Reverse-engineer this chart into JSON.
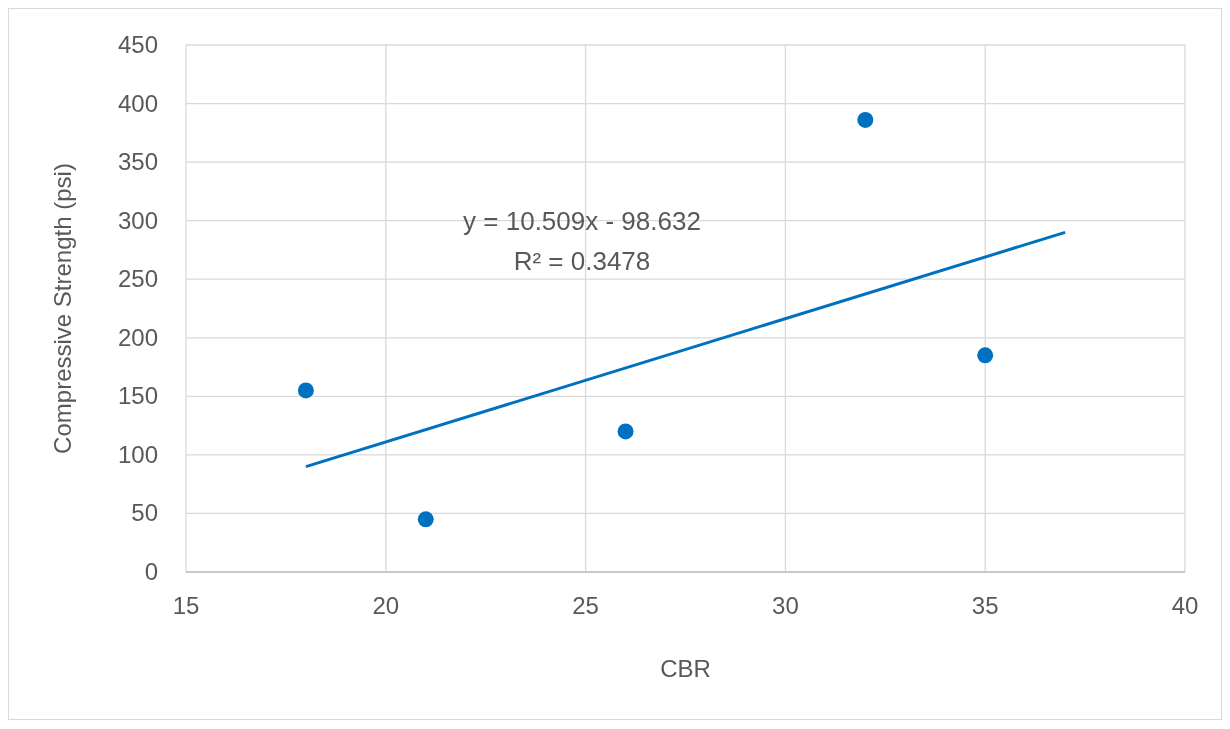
{
  "chart_data": {
    "type": "scatter",
    "xlabel": "CBR",
    "ylabel": "Compressive Strength (psi)",
    "xlim": [
      15,
      40
    ],
    "xticks": [
      15,
      20,
      25,
      30,
      35,
      40
    ],
    "ylim": [
      0,
      450
    ],
    "yticks": [
      0,
      50,
      100,
      150,
      200,
      250,
      300,
      350,
      400,
      450
    ],
    "grid": true,
    "series": [
      {
        "color": "#0070c0",
        "marker": "circle",
        "x": [
          18,
          21,
          26,
          32,
          35
        ],
        "values": [
          155,
          45,
          120,
          386,
          185
        ]
      },
      {
        "type": "line",
        "color": "#0070c0",
        "x": [
          18,
          37
        ],
        "values": [
          90,
          290
        ]
      }
    ],
    "annotations": [
      "y = 10.509x - 98.632",
      "R² = 0.3478"
    ]
  }
}
